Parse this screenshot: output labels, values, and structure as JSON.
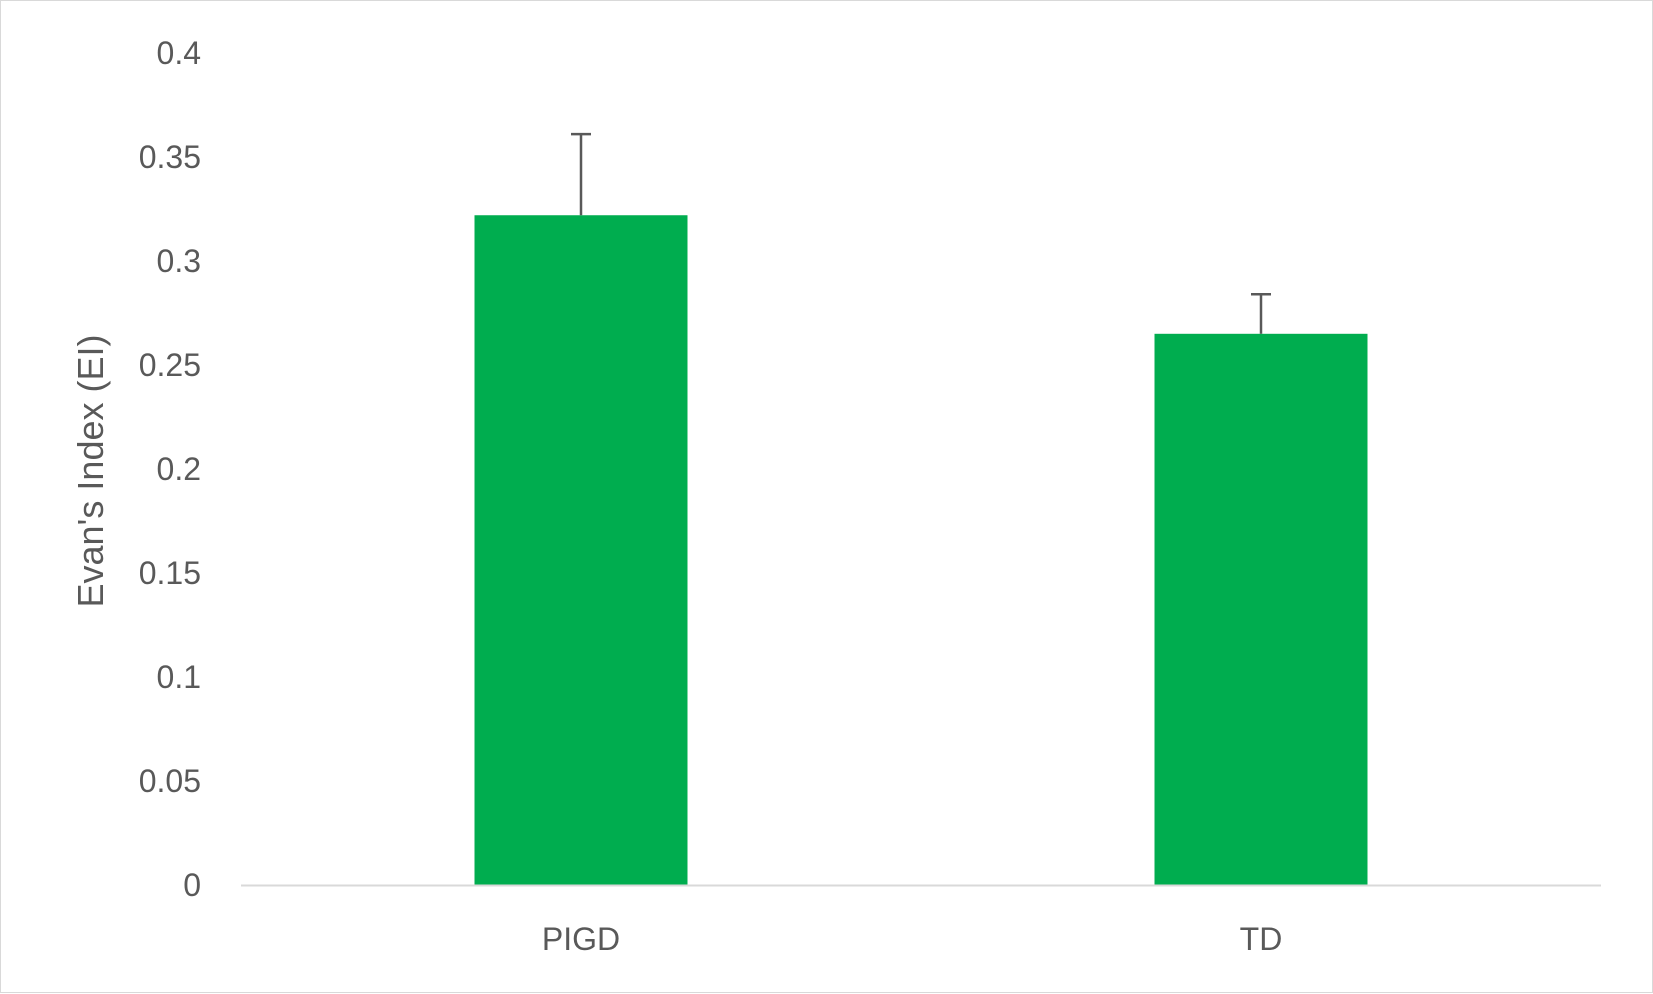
{
  "chart_data": {
    "type": "bar",
    "title": "",
    "xlabel": "",
    "ylabel": "Evan's Index (EI)",
    "categories": [
      "PIGD",
      "TD"
    ],
    "values": [
      0.322,
      0.265
    ],
    "error_plus": [
      0.039,
      0.019
    ],
    "ylim": [
      0,
      0.4
    ],
    "yticks": [
      0,
      0.05,
      0.1,
      0.15,
      0.2,
      0.25,
      0.3,
      0.35,
      0.4
    ],
    "ytick_labels": [
      "0",
      "0.05",
      "0.1",
      "0.15",
      "0.2",
      "0.25",
      "0.3",
      "0.35",
      "0.4"
    ],
    "grid": false,
    "legend": "none",
    "colors": {
      "bar": "#00ad4f",
      "error_bar": "#595959",
      "axis_line": "#d9d9d9",
      "text": "#595959"
    }
  }
}
